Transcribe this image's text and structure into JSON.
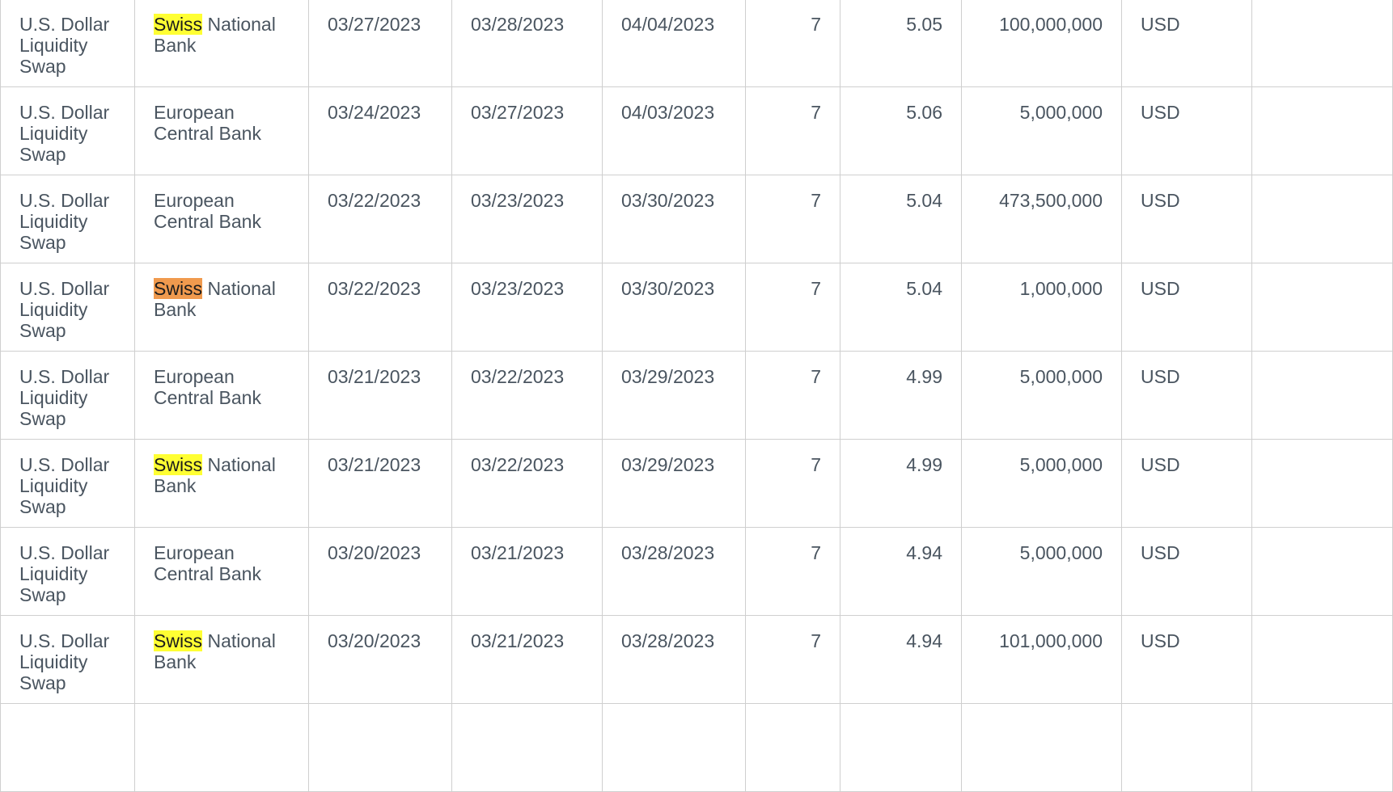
{
  "highlight_term": "Swiss",
  "colors": {
    "highlight": "#ffff33",
    "current_highlight": "#f09a4e",
    "grid": "#cfcfcf",
    "text": "#4a5560"
  },
  "rows": [
    {
      "operation": "U.S. Dollar Liquidity Swap",
      "counterparty_hl": "Swiss",
      "counterparty_rest": " National Bank",
      "hl_type": "normal",
      "trade_date": "03/27/2023",
      "settlement_date": "03/28/2023",
      "maturity_date": "04/04/2023",
      "term": "7",
      "rate": "5.05",
      "amount": "100,000,000",
      "currency": "USD"
    },
    {
      "operation": "U.S. Dollar Liquidity Swap",
      "counterparty_hl": "",
      "counterparty_rest": "European Central Bank",
      "hl_type": "none",
      "trade_date": "03/24/2023",
      "settlement_date": "03/27/2023",
      "maturity_date": "04/03/2023",
      "term": "7",
      "rate": "5.06",
      "amount": "5,000,000",
      "currency": "USD"
    },
    {
      "operation": "U.S. Dollar Liquidity Swap",
      "counterparty_hl": "",
      "counterparty_rest": "European Central Bank",
      "hl_type": "none",
      "trade_date": "03/22/2023",
      "settlement_date": "03/23/2023",
      "maturity_date": "03/30/2023",
      "term": "7",
      "rate": "5.04",
      "amount": "473,500,000",
      "currency": "USD"
    },
    {
      "operation": "U.S. Dollar Liquidity Swap",
      "counterparty_hl": "Swiss",
      "counterparty_rest": " National Bank",
      "hl_type": "current",
      "trade_date": "03/22/2023",
      "settlement_date": "03/23/2023",
      "maturity_date": "03/30/2023",
      "term": "7",
      "rate": "5.04",
      "amount": "1,000,000",
      "currency": "USD"
    },
    {
      "operation": "U.S. Dollar Liquidity Swap",
      "counterparty_hl": "",
      "counterparty_rest": "European Central Bank",
      "hl_type": "none",
      "trade_date": "03/21/2023",
      "settlement_date": "03/22/2023",
      "maturity_date": "03/29/2023",
      "term": "7",
      "rate": "4.99",
      "amount": "5,000,000",
      "currency": "USD"
    },
    {
      "operation": "U.S. Dollar Liquidity Swap",
      "counterparty_hl": "Swiss",
      "counterparty_rest": " National Bank",
      "hl_type": "normal",
      "trade_date": "03/21/2023",
      "settlement_date": "03/22/2023",
      "maturity_date": "03/29/2023",
      "term": "7",
      "rate": "4.99",
      "amount": "5,000,000",
      "currency": "USD"
    },
    {
      "operation": "U.S. Dollar Liquidity Swap",
      "counterparty_hl": "",
      "counterparty_rest": "European Central Bank",
      "hl_type": "none",
      "trade_date": "03/20/2023",
      "settlement_date": "03/21/2023",
      "maturity_date": "03/28/2023",
      "term": "7",
      "rate": "4.94",
      "amount": "5,000,000",
      "currency": "USD"
    },
    {
      "operation": "U.S. Dollar Liquidity Swap",
      "counterparty_hl": "Swiss",
      "counterparty_rest": " National Bank",
      "hl_type": "normal",
      "trade_date": "03/20/2023",
      "settlement_date": "03/21/2023",
      "maturity_date": "03/28/2023",
      "term": "7",
      "rate": "4.94",
      "amount": "101,000,000",
      "currency": "USD"
    }
  ]
}
